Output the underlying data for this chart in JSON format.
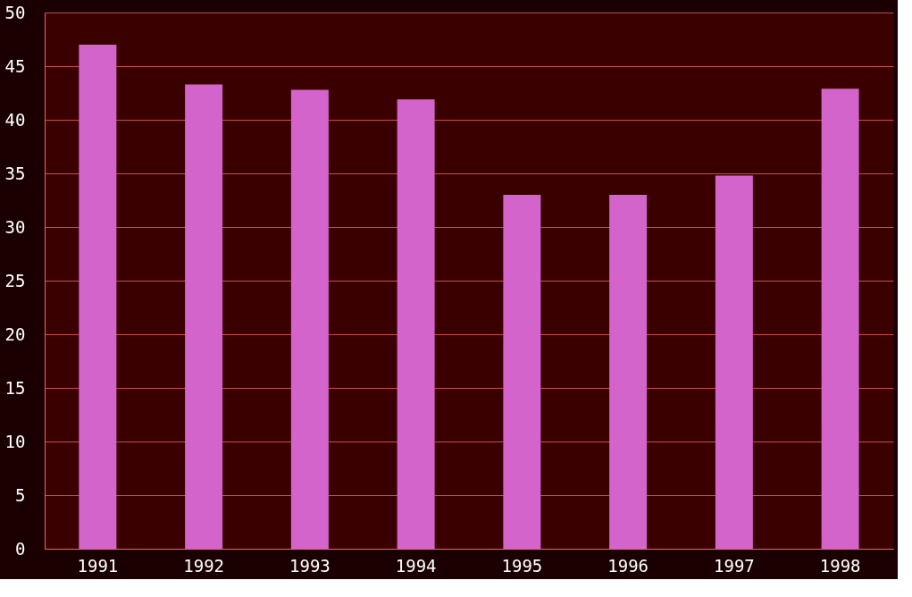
{
  "chart_data": {
    "type": "bar",
    "categories": [
      "1991",
      "1992",
      "1993",
      "1994",
      "1995",
      "1996",
      "1997",
      "1998"
    ],
    "values": [
      47,
      43.3,
      42.8,
      41.9,
      33,
      33,
      34.8,
      42.9
    ],
    "color": "#d264cc",
    "ylim": [
      0,
      50
    ],
    "yticks": [
      0,
      5,
      10,
      15,
      20,
      25,
      30,
      35,
      40,
      45,
      50
    ],
    "grid": "y"
  }
}
